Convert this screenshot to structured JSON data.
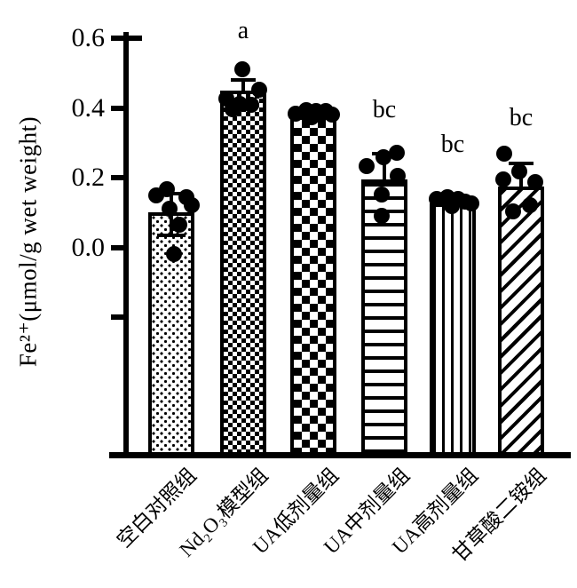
{
  "figure": {
    "background_color": "#ffffff",
    "ink_color": "#000000"
  },
  "chart_data": {
    "type": "bar",
    "title": "",
    "xlabel": "",
    "ylabel": "Fe²⁺(μmol/g wet weight)",
    "categories": [
      "空白对照组",
      "Nd₂O₃模型组",
      "UA低剂量组",
      "UA中剂量组",
      "UA高剂量组",
      "甘草酸二铵组"
    ],
    "values": [
      0.1,
      0.45,
      0.375,
      0.195,
      0.125,
      0.175
    ],
    "error_bar_top": [
      0.155,
      0.48,
      null,
      0.27,
      null,
      0.242
    ],
    "error_bar_bottom": [
      0.035,
      null,
      null,
      null,
      null,
      null
    ],
    "significance_labels": [
      "",
      "a",
      "",
      "bc",
      "bc",
      "bc"
    ],
    "bar_patterns": [
      "dots",
      "checker-fine",
      "checker-coarse",
      "horizontal-lines",
      "vertical-lines",
      "diagonal-stripes"
    ],
    "scatter_points": [
      [
        [
          -17,
          0.148
        ],
        [
          -5,
          0.166
        ],
        [
          17,
          0.145
        ],
        [
          23,
          0.122
        ],
        [
          -2,
          0.112
        ],
        [
          9,
          0.066
        ],
        [
          3,
          -0.02
        ]
      ],
      [
        [
          -1,
          0.51
        ],
        [
          18,
          0.452
        ],
        [
          -19,
          0.428
        ],
        [
          -4,
          0.412
        ],
        [
          9,
          0.408
        ],
        [
          -12,
          0.396
        ]
      ],
      [
        [
          -20,
          0.383
        ],
        [
          -8,
          0.393
        ],
        [
          3,
          0.39
        ],
        [
          14,
          0.392
        ],
        [
          21,
          0.381
        ],
        [
          -2,
          0.372
        ]
      ],
      [
        [
          -20,
          0.232
        ],
        [
          -1,
          0.258
        ],
        [
          14,
          0.272
        ],
        [
          15,
          0.206
        ],
        [
          -3,
          0.152
        ],
        [
          -3,
          0.09
        ]
      ],
      [
        [
          -18,
          0.138
        ],
        [
          -6,
          0.144
        ],
        [
          6,
          0.14
        ],
        [
          14,
          0.132
        ],
        [
          21,
          0.127
        ],
        [
          -1,
          0.118
        ]
      ],
      [
        [
          -19,
          0.268
        ],
        [
          -2,
          0.219
        ],
        [
          -20,
          0.194
        ],
        [
          16,
          0.186
        ],
        [
          10,
          0.122
        ],
        [
          -9,
          0.102
        ]
      ]
    ],
    "y_ticks": [
      {
        "label": "0.6",
        "value": 0.6
      },
      {
        "label": "0.4",
        "value": 0.4
      },
      {
        "label": "0.2",
        "value": 0.2
      },
      {
        "label": "0.0",
        "value": 0.0
      },
      {
        "label": "",
        "value": -0.2
      }
    ],
    "ylim": [
      -0.2,
      0.6
    ],
    "grid": false,
    "legend": "none"
  }
}
